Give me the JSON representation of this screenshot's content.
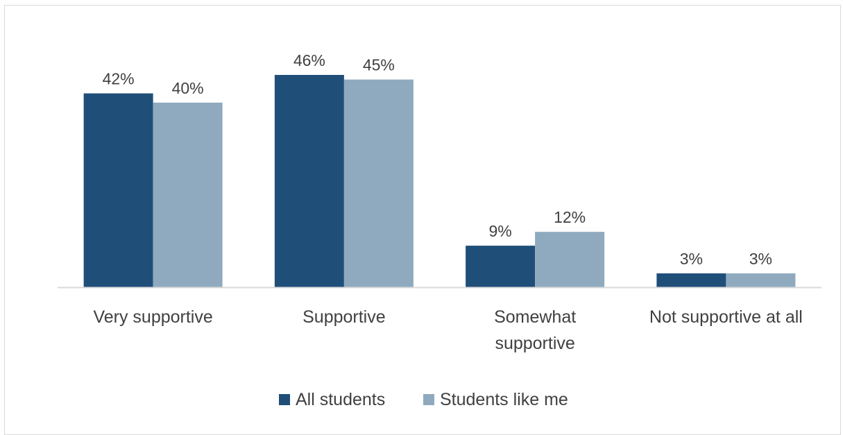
{
  "chart_data": {
    "type": "bar",
    "categories": [
      "Very supportive",
      "Supportive",
      "Somewhat supportive",
      "Not supportive at all"
    ],
    "category_lines": [
      [
        "Very supportive"
      ],
      [
        "Supportive"
      ],
      [
        "Somewhat",
        "supportive"
      ],
      [
        "Not supportive at all"
      ]
    ],
    "series": [
      {
        "name": "All students",
        "values": [
          42,
          46,
          9,
          3
        ],
        "labels": [
          "42%",
          "46%",
          "9%",
          "3%"
        ],
        "color": "#1f4e79"
      },
      {
        "name": "Students like me",
        "values": [
          40,
          45,
          12,
          3
        ],
        "labels": [
          "40%",
          "45%",
          "12%",
          "3%"
        ],
        "color": "#8faabf"
      }
    ],
    "ylim": [
      0,
      46
    ],
    "grid": false,
    "legend_position": "bottom",
    "axis_color": "#d9d9d9",
    "text_color": "#404040"
  }
}
